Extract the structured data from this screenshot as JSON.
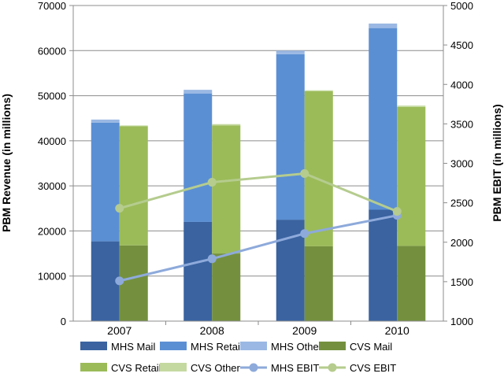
{
  "chart_data": {
    "type": "bar",
    "categories": [
      "2007",
      "2008",
      "2009",
      "2010"
    ],
    "ylabel": "PBM Revenue (in millions)",
    "y2label": "PBM EBIT (in millions)",
    "ylim": [
      0,
      70000
    ],
    "y2lim": [
      1000,
      5000
    ],
    "yticks": [
      "0",
      "10000",
      "20000",
      "30000",
      "40000",
      "50000",
      "60000",
      "70000"
    ],
    "y2ticks": [
      "1000",
      "1500",
      "2000",
      "2500",
      "3000",
      "3500",
      "4000",
      "4500",
      "5000"
    ],
    "grid": true,
    "legend_position": "bottom",
    "stacks": [
      {
        "stack": "MHS",
        "series": [
          {
            "name": "MHS Mail",
            "color": "#3a63a0",
            "values": [
              17700,
              22000,
              22500,
              24700
            ]
          },
          {
            "name": "MHS Retail",
            "color": "#5b8fd3",
            "values": [
              26300,
              28500,
              36700,
              40300
            ]
          },
          {
            "name": "MHS Other",
            "color": "#9ab8e3",
            "values": [
              700,
              800,
              800,
              1000
            ]
          }
        ]
      },
      {
        "stack": "CVS",
        "series": [
          {
            "name": "CVS Mail",
            "color": "#74903e",
            "values": [
              16800,
              15000,
              16600,
              16700
            ]
          },
          {
            "name": "CVS Retail",
            "color": "#9bbb59",
            "values": [
              26400,
              28400,
              34400,
              30800
            ]
          },
          {
            "name": "CVS Other",
            "color": "#c4d9a0",
            "values": [
              200,
              300,
              200,
              300
            ]
          }
        ]
      }
    ],
    "lines": [
      {
        "name": "MHS EBIT",
        "color": "#8eaadb",
        "axis": "right",
        "values": [
          1510,
          1790,
          2110,
          2340
        ]
      },
      {
        "name": "CVS EBIT",
        "color": "#b5cc8e",
        "axis": "right",
        "values": [
          2430,
          2760,
          2870,
          2390
        ]
      }
    ]
  }
}
